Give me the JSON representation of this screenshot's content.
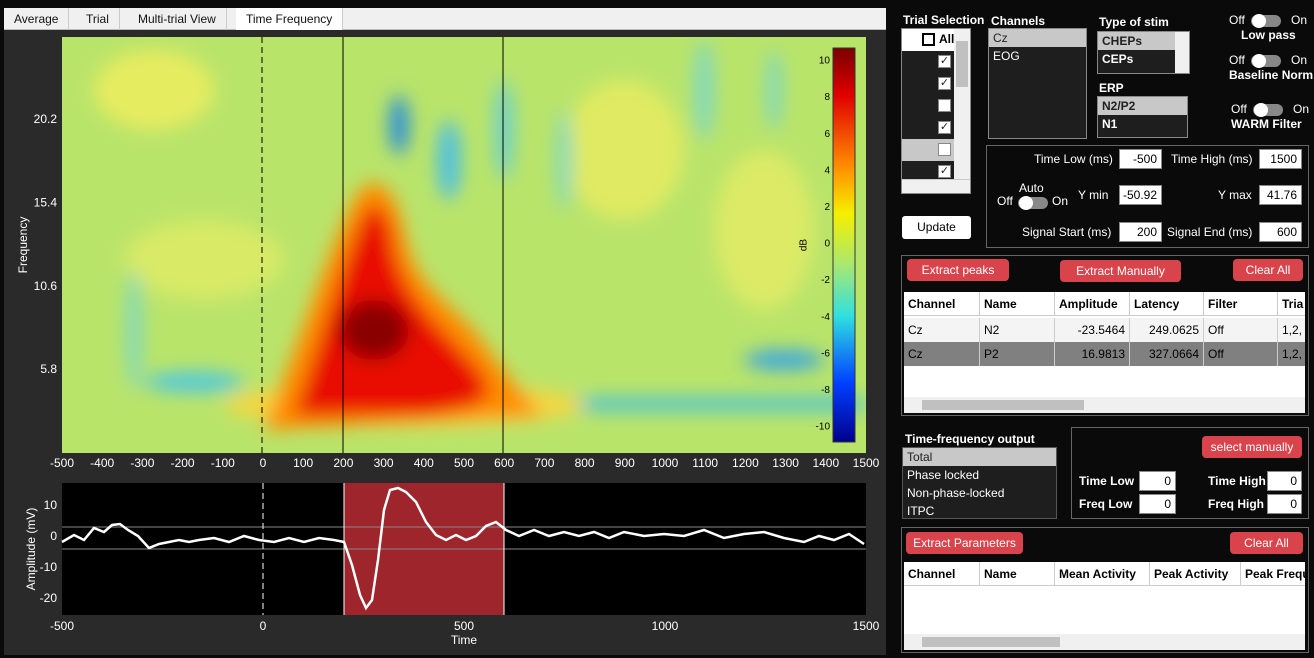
{
  "tabs": [
    "Average",
    "Trial",
    "Multi-trial View",
    "Time Frequency"
  ],
  "tf_plot": {
    "x_ticks": [
      -500,
      -400,
      -300,
      -200,
      -100,
      0,
      100,
      200,
      300,
      400,
      500,
      600,
      700,
      800,
      900,
      1000,
      1100,
      1200,
      1300,
      1400,
      1500
    ],
    "y_label": "Frequency",
    "y_ticks": [
      20.2,
      15.4,
      10.6,
      5.8
    ],
    "colorbar_ticks": [
      10,
      8,
      6,
      4,
      2,
      0,
      -2,
      -4,
      -6,
      -8,
      -10
    ],
    "colorbar_label": "dB"
  },
  "erp_plot": {
    "y_label": "Amplitude (mV)",
    "y_ticks": [
      10,
      0,
      -10,
      -20
    ],
    "x_ticks": [
      -500,
      0,
      500,
      1000,
      1500
    ],
    "x_label": "Time"
  },
  "trial_selection": {
    "title": "Trial Selection",
    "all_label": "All"
  },
  "channels": {
    "title": "Channels",
    "items": [
      "Cz",
      "EOG"
    ]
  },
  "stim": {
    "title": "Type of stim",
    "items": [
      "CHEPs",
      "CEPs"
    ]
  },
  "erp": {
    "title": "ERP",
    "items": [
      "N2/P2",
      "N1"
    ]
  },
  "toggles": [
    {
      "off": "Off",
      "on": "On",
      "label": "Low pass"
    },
    {
      "off": "Off",
      "on": "On",
      "label": "Baseline  Norm"
    },
    {
      "off": "Off",
      "on": "On",
      "label": "WARM Filter"
    }
  ],
  "params": {
    "time_low": {
      "label": "Time Low (ms)",
      "value": -500
    },
    "time_high": {
      "label": "Time High (ms)",
      "value": 1500
    },
    "auto": {
      "label": "Auto",
      "off": "Off",
      "on": "On"
    },
    "y_min": {
      "label": "Y min",
      "value": -50.92
    },
    "y_max": {
      "label": "Y max",
      "value": 41.76
    },
    "signal_start": {
      "label": "Signal Start (ms)",
      "value": 200
    },
    "signal_end": {
      "label": "Signal End (ms)",
      "value": 600
    }
  },
  "update": "Update",
  "peaks": {
    "buttons": [
      "Extract peaks",
      "Extract Manually",
      "Clear All"
    ],
    "columns": [
      "Channel",
      "Name",
      "Amplitude",
      "Latency",
      "Filter",
      "Tria"
    ],
    "rows": [
      [
        "Cz",
        "N2",
        -23.5464,
        249.0625,
        "Off",
        "1,2,"
      ],
      [
        "Cz",
        "P2",
        16.9813,
        327.0664,
        "Off",
        "1,2,"
      ]
    ]
  },
  "tf_output": {
    "title": "Time-frequency output",
    "items": [
      "Total",
      "Phase locked",
      "Non-phase-locked",
      "ITPC"
    ]
  },
  "manual": {
    "button": "select manually",
    "fields": [
      {
        "label": "Time Low",
        "value": 0
      },
      {
        "label": "Time High",
        "value": 0
      },
      {
        "label": "Freq Low",
        "value": 0
      },
      {
        "label": "Freq High",
        "value": 0
      }
    ]
  },
  "parameters": {
    "buttons": [
      "Extract Parameters",
      "Clear All"
    ],
    "columns": [
      "Channel",
      "Name",
      "Mean Activity",
      "Peak Activity",
      "Peak Frequ"
    ]
  }
}
